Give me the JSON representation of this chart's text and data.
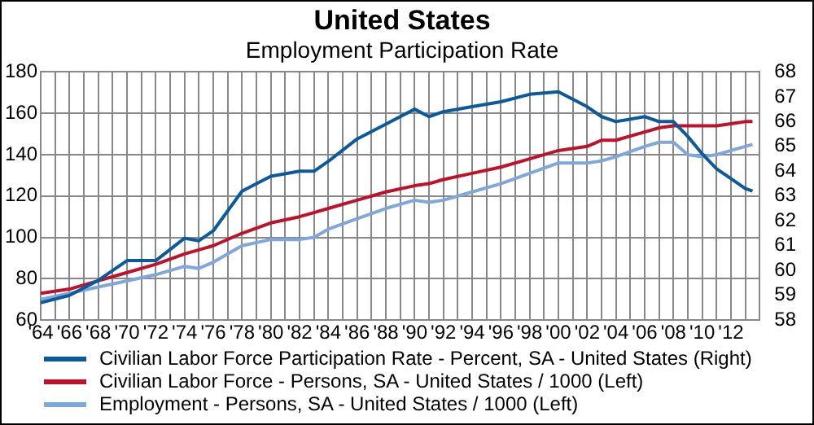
{
  "chart_data": {
    "type": "line",
    "title": "United States",
    "subtitle": "Employment Participation Rate",
    "x": [
      1964,
      1966,
      1968,
      1970,
      1972,
      1974,
      1975,
      1976,
      1978,
      1980,
      1982,
      1983,
      1984,
      1986,
      1988,
      1990,
      1991,
      1992,
      1994,
      1996,
      1998,
      2000,
      2002,
      2003,
      2004,
      2006,
      2007,
      2008,
      2009,
      2010,
      2011,
      2012,
      2013,
      2013.5
    ],
    "series": [
      {
        "name": "Civilian Labor Force Participation Rate - Percent, SA - United States  (Right)",
        "color": "#0b5a9c",
        "axis": "y2",
        "values": [
          58.7,
          59.0,
          59.6,
          60.4,
          60.4,
          61.3,
          61.2,
          61.6,
          63.2,
          63.8,
          64.0,
          64.0,
          64.4,
          65.3,
          65.9,
          66.5,
          66.2,
          66.4,
          66.6,
          66.8,
          67.1,
          67.2,
          66.6,
          66.2,
          66.0,
          66.2,
          66.0,
          66.0,
          65.4,
          64.7,
          64.1,
          63.7,
          63.3,
          63.2
        ]
      },
      {
        "name": "Civilian Labor Force - Persons, SA - United States / 1000  (Left)",
        "color": "#c0102a",
        "values": [
          73,
          75,
          79,
          83,
          87,
          92,
          94,
          96,
          102,
          107,
          110,
          112,
          114,
          118,
          122,
          125,
          126,
          128,
          131,
          134,
          138,
          142,
          144,
          147,
          147,
          151,
          153,
          154,
          154,
          154,
          154,
          155,
          156,
          156
        ]
      },
      {
        "name": "Employment - Persons, SA - United States / 1000  (Left)",
        "color": "#7fa7d9",
        "values": [
          70,
          73,
          76,
          79,
          82,
          86,
          85,
          88,
          96,
          99,
          99,
          100,
          104,
          109,
          114,
          118,
          117,
          118,
          122,
          126,
          131,
          136,
          136,
          137,
          139,
          144,
          146,
          146,
          140,
          139,
          140,
          142,
          144,
          145
        ]
      }
    ],
    "xlim": [
      1964,
      2014
    ],
    "xticks": [
      {
        "value": 1964,
        "label": "'64"
      },
      {
        "value": 1965,
        "label": null
      },
      {
        "value": 1966,
        "label": "'66"
      },
      {
        "value": 1967,
        "label": null
      },
      {
        "value": 1968,
        "label": "'68"
      },
      {
        "value": 1969,
        "label": null
      },
      {
        "value": 1970,
        "label": "'70"
      },
      {
        "value": 1971,
        "label": null
      },
      {
        "value": 1972,
        "label": "'72"
      },
      {
        "value": 1973,
        "label": null
      },
      {
        "value": 1974,
        "label": "'74"
      },
      {
        "value": 1975,
        "label": null
      },
      {
        "value": 1976,
        "label": "'76"
      },
      {
        "value": 1977,
        "label": null
      },
      {
        "value": 1978,
        "label": "'78"
      },
      {
        "value": 1979,
        "label": null
      },
      {
        "value": 1980,
        "label": "'80"
      },
      {
        "value": 1981,
        "label": null
      },
      {
        "value": 1982,
        "label": "'82"
      },
      {
        "value": 1983,
        "label": null
      },
      {
        "value": 1984,
        "label": "'84"
      },
      {
        "value": 1985,
        "label": null
      },
      {
        "value": 1986,
        "label": "'86"
      },
      {
        "value": 1987,
        "label": null
      },
      {
        "value": 1988,
        "label": "'88"
      },
      {
        "value": 1989,
        "label": null
      },
      {
        "value": 1990,
        "label": "'90"
      },
      {
        "value": 1991,
        "label": null
      },
      {
        "value": 1992,
        "label": "'92"
      },
      {
        "value": 1993,
        "label": null
      },
      {
        "value": 1994,
        "label": "'94"
      },
      {
        "value": 1995,
        "label": null
      },
      {
        "value": 1996,
        "label": "'96"
      },
      {
        "value": 1997,
        "label": null
      },
      {
        "value": 1998,
        "label": "'98"
      },
      {
        "value": 1999,
        "label": null
      },
      {
        "value": 2000,
        "label": "'00"
      },
      {
        "value": 2001,
        "label": null
      },
      {
        "value": 2002,
        "label": "'02"
      },
      {
        "value": 2003,
        "label": null
      },
      {
        "value": 2004,
        "label": "'04"
      },
      {
        "value": 2005,
        "label": null
      },
      {
        "value": 2006,
        "label": "'06"
      },
      {
        "value": 2007,
        "label": null
      },
      {
        "value": 2008,
        "label": "'08"
      },
      {
        "value": 2009,
        "label": null
      },
      {
        "value": 2010,
        "label": "'10"
      },
      {
        "value": 2011,
        "label": null
      },
      {
        "value": 2012,
        "label": "'12"
      },
      {
        "value": 2013,
        "label": null
      },
      {
        "value": 2014,
        "label": null
      }
    ],
    "ylim": [
      60,
      180
    ],
    "yticks": [
      60,
      80,
      100,
      120,
      140,
      160,
      180
    ],
    "y2lim": [
      58,
      68
    ],
    "y2ticks": [
      58,
      59,
      60,
      61,
      62,
      63,
      64,
      65,
      66,
      67,
      68
    ],
    "grid": true,
    "legend": "bottom",
    "marker": "none",
    "line_style": "solid"
  }
}
